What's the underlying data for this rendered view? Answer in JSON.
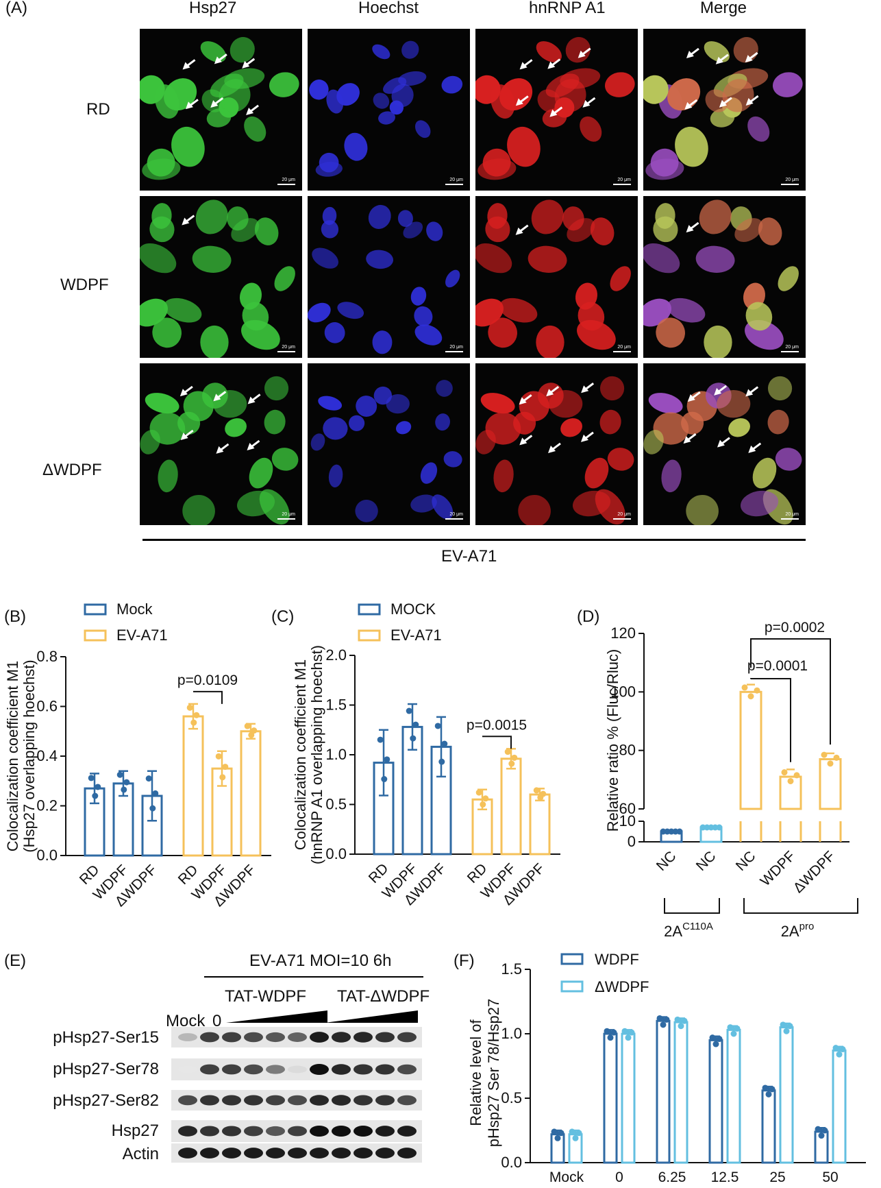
{
  "panelA": {
    "label": "(A)",
    "columns": [
      "Hsp27",
      "Hoechst",
      "hnRNP A1",
      "Merge"
    ],
    "rows": [
      "RD",
      "WDPF",
      "ΔWDPF"
    ],
    "scale": "20 μm",
    "bottom_label": "EV-A71",
    "colors": {
      "hsp27": "#3cc43c",
      "hoechst": "#2f2fd8",
      "hnrnp": "#d82020",
      "merge": "#c08a6a"
    }
  },
  "chart_data": [
    {
      "id": "B",
      "label": "(B)",
      "type": "bar",
      "ylabel": "Colocalization coefficient M1\n(Hsp27 overlapping hoechst)",
      "ylim": [
        0,
        0.8
      ],
      "yticks": [
        "0.0",
        "0.2",
        "0.4",
        "0.6",
        "0.8"
      ],
      "legend": [
        {
          "name": "Mock",
          "color": "#2f6aa3"
        },
        {
          "name": "EV-A71",
          "color": "#f5c15a"
        }
      ],
      "groups": [
        {
          "name": "Mock",
          "color": "#2f6aa3",
          "categories": [
            "RD",
            "WDPF",
            "ΔWDPF"
          ],
          "values": [
            0.27,
            0.29,
            0.24
          ],
          "err": [
            0.06,
            0.05,
            0.1
          ]
        },
        {
          "name": "EV-A71",
          "color": "#f5c15a",
          "categories": [
            "RD",
            "WDPF",
            "ΔWDPF"
          ],
          "values": [
            0.56,
            0.35,
            0.5
          ],
          "err": [
            0.05,
            0.07,
            0.03
          ]
        }
      ],
      "annotation": {
        "text": "p=0.0109",
        "between": [
          "EV-A71 RD",
          "EV-A71 WDPF"
        ]
      }
    },
    {
      "id": "C",
      "label": "(C)",
      "type": "bar",
      "ylabel": "Colocalization coefficient M1\n(hnRNP A1 overlapping hoechst)",
      "ylim": [
        0,
        2.0
      ],
      "yticks": [
        "0.0",
        "0.5",
        "1.0",
        "1.5",
        "2.0"
      ],
      "legend": [
        {
          "name": "MOCK",
          "color": "#2f6aa3"
        },
        {
          "name": "EV-A71",
          "color": "#f5c15a"
        }
      ],
      "groups": [
        {
          "name": "MOCK",
          "color": "#2f6aa3",
          "categories": [
            "RD",
            "WDPF",
            "ΔWDPF"
          ],
          "values": [
            0.92,
            1.28,
            1.08
          ],
          "err": [
            0.33,
            0.23,
            0.3
          ]
        },
        {
          "name": "EV-A71",
          "color": "#f5c15a",
          "categories": [
            "RD",
            "WDPF",
            "ΔWDPF"
          ],
          "values": [
            0.55,
            0.96,
            0.6
          ],
          "err": [
            0.1,
            0.1,
            0.06
          ]
        }
      ],
      "annotation": {
        "text": "p=0.0015",
        "between": [
          "EV-A71 RD",
          "EV-A71 WDPF"
        ]
      }
    },
    {
      "id": "D",
      "label": "(D)",
      "type": "bar",
      "ylabel": "Relative ratio % (Fluc/Rluc)",
      "ylim": [
        0,
        120
      ],
      "yticks": [
        "0",
        "10",
        "60",
        "80",
        "100",
        "120"
      ],
      "categories": [
        "NC",
        "NC",
        "NC",
        "WDPF",
        "ΔWDPF"
      ],
      "values": [
        5,
        7,
        100,
        71,
        77
      ],
      "err": [
        0.5,
        0.5,
        2.5,
        2.5,
        2
      ],
      "colors": [
        "#2f6aa3",
        "#63bfe0",
        "#f5c15a",
        "#f5c15a",
        "#f5c15a"
      ],
      "annotations": [
        {
          "text": "p=0.0001"
        },
        {
          "text": "p=0.0002"
        }
      ],
      "bracket_labels": [
        {
          "main": "2A",
          "sup": "C110A"
        },
        {
          "main": "2A",
          "sup": "pro"
        }
      ]
    },
    {
      "id": "F",
      "label": "(F)",
      "type": "bar",
      "ylabel": "Relative level of\npHsp27 Ser 78/Hsp27",
      "ylim": [
        0,
        1.5
      ],
      "yticks": [
        "0.0",
        "0.5",
        "1.0",
        "1.5"
      ],
      "categories": [
        "Mock",
        "0",
        "6.25",
        "12.5",
        "25",
        "50"
      ],
      "series": [
        {
          "name": "WDPF",
          "color": "#2f6aa3",
          "values": [
            0.22,
            1.0,
            1.1,
            0.95,
            0.56,
            0.24
          ]
        },
        {
          "name": "ΔWDPF",
          "color": "#63bfe0",
          "values": [
            0.22,
            1.0,
            1.09,
            1.03,
            1.05,
            0.87
          ]
        }
      ]
    }
  ],
  "panelE": {
    "label": "(E)",
    "header": "EV-A71 MOI=10 6h",
    "groups": [
      "TAT-WDPF",
      "TAT-ΔWDPF"
    ],
    "lane_labels": [
      "Mock",
      "0"
    ],
    "rows": [
      "pHsp27-Ser15",
      "pHsp27-Ser78",
      "pHsp27-Ser82",
      "Hsp27",
      "Actin"
    ],
    "intensities": [
      [
        0.3,
        0.8,
        0.8,
        0.75,
        0.7,
        0.65,
        0.95,
        0.9,
        0.9,
        0.85,
        0.8
      ],
      [
        0.1,
        0.8,
        0.8,
        0.75,
        0.55,
        0.15,
        1.0,
        0.9,
        0.85,
        0.85,
        0.75
      ],
      [
        0.75,
        0.85,
        0.85,
        0.85,
        0.8,
        0.75,
        0.9,
        0.9,
        0.85,
        0.85,
        0.75
      ],
      [
        0.9,
        0.85,
        0.85,
        0.8,
        0.7,
        0.8,
        1.0,
        1.0,
        1.0,
        0.95,
        0.95
      ],
      [
        0.95,
        0.95,
        0.95,
        0.95,
        0.95,
        0.95,
        0.95,
        0.95,
        0.95,
        0.95,
        0.95
      ]
    ]
  }
}
